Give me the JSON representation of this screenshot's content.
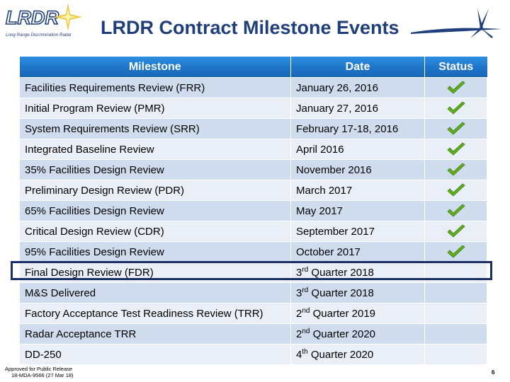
{
  "logo": {
    "text": "LRDR",
    "subtitle": "Long Range Discrimination Radar"
  },
  "header": {
    "title": "LRDR Contract Milestone Events",
    "corner_logo": "lockheed-star-icon"
  },
  "table": {
    "columns": [
      "Milestone",
      "Date",
      "Status"
    ],
    "rows": [
      {
        "milestone": "Facilities Requirements Review (FRR)",
        "date": "January 26, 2016",
        "complete": true
      },
      {
        "milestone": "Initial Program Review (PMR)",
        "date": "January 27, 2016",
        "complete": true
      },
      {
        "milestone": "System Requirements Review (SRR)",
        "date": "February 17-18, 2016",
        "complete": true
      },
      {
        "milestone": "Integrated Baseline Review",
        "date": "April 2016",
        "complete": true
      },
      {
        "milestone": "35% Facilities Design Review",
        "date": "November 2016",
        "complete": true
      },
      {
        "milestone": "Preliminary Design Review (PDR)",
        "date": "March 2017",
        "complete": true
      },
      {
        "milestone": "65% Facilities Design Review",
        "date": "May 2017",
        "complete": true
      },
      {
        "milestone": "Critical Design Review (CDR)",
        "date": "September 2017",
        "complete": true
      },
      {
        "milestone": "95% Facilities Design Review",
        "date": "October 2017",
        "complete": true
      },
      {
        "milestone": "Final Design Review (FDR)",
        "date_num": "3",
        "date_sup": "rd",
        "date_rest": " Quarter 2018",
        "complete": false,
        "highlighted": true
      },
      {
        "milestone": "M&S Delivered",
        "date_num": "3",
        "date_sup": "rd",
        "date_rest": " Quarter 2018",
        "complete": false
      },
      {
        "milestone": "Factory Acceptance Test Readiness Review (TRR)",
        "date_num": "2",
        "date_sup": "nd",
        "date_rest": " Quarter 2019",
        "complete": false
      },
      {
        "milestone": "Radar Acceptance TRR",
        "date_num": "2",
        "date_sup": "nd",
        "date_rest": " Quarter 2020",
        "complete": false
      },
      {
        "milestone": "DD-250",
        "date_num": "4",
        "date_sup": "th",
        "date_rest": " Quarter 2020",
        "complete": false
      }
    ]
  },
  "footer": {
    "release_line1": "Approved for Public Release",
    "release_line2": "18-MDA-9566 (27 Mar 18)",
    "page_number": "6"
  },
  "colors": {
    "title": "#1f3f7a",
    "header_fill": "#1f75c8",
    "row_odd": "#cfdcee",
    "row_even": "#e9eef7",
    "check": "#5fae1e",
    "highlight_border": "#1a2f66"
  }
}
